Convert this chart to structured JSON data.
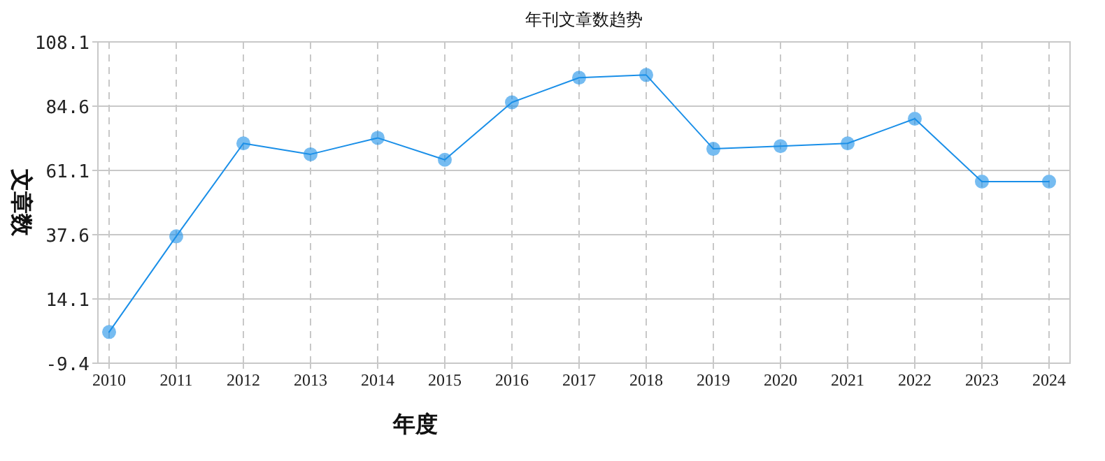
{
  "chart_data": {
    "type": "line",
    "title": "年刊文章数趋势",
    "xlabel": "年度",
    "ylabel": "文章数",
    "categories": [
      "2010",
      "2011",
      "2012",
      "2013",
      "2014",
      "2015",
      "2016",
      "2017",
      "2018",
      "2019",
      "2020",
      "2021",
      "2022",
      "2023",
      "2024"
    ],
    "series": [
      {
        "color": "#1a8fe8",
        "values": [
          2,
          37,
          71,
          67,
          73,
          65,
          86,
          95,
          96,
          69,
          70,
          71,
          80,
          57,
          57
        ]
      }
    ],
    "ylim": [
      -9.4,
      108.1
    ],
    "yticks": [
      -9.4,
      14.1,
      37.6,
      61.1,
      84.6,
      108.1
    ],
    "grid": true,
    "marker": "circle"
  }
}
